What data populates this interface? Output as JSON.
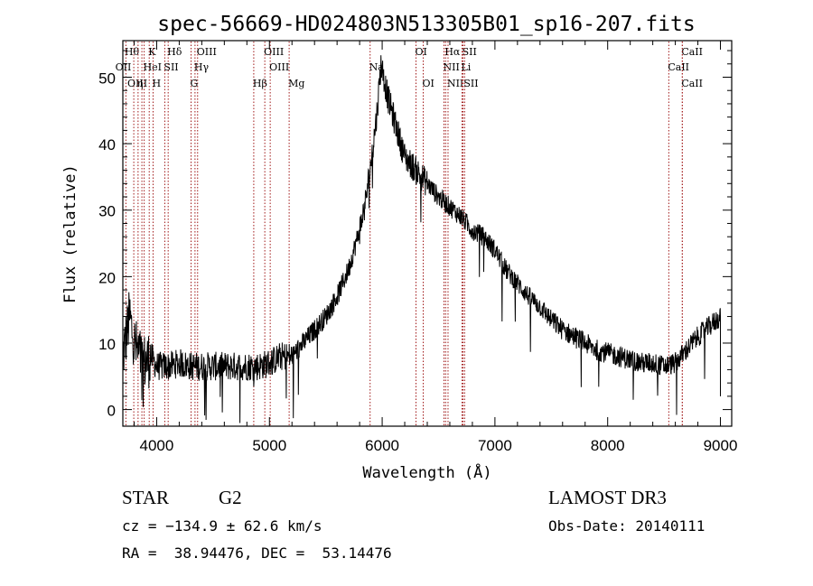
{
  "header": {
    "title": "spec-56669-HD024803N513305B01_sp16-207.fits"
  },
  "chart_data": {
    "type": "line",
    "title": "spec-56669-HD024803N513305B01_sp16-207.fits",
    "xlabel": "Wavelength (Å)",
    "ylabel": "Flux (relative)",
    "xlim": [
      3700,
      9100
    ],
    "ylim": [
      -2.5,
      55.5
    ],
    "xticks": [
      4000,
      5000,
      6000,
      7000,
      8000,
      9000
    ],
    "yticks": [
      0,
      10,
      20,
      30,
      40,
      50
    ],
    "grid": false,
    "series": [
      {
        "x": [
          3700,
          3760,
          3800,
          3850,
          3900,
          3950,
          4000,
          4100,
          4200,
          4300,
          4400,
          4500,
          4600,
          4700,
          4800,
          4900,
          5000,
          5100,
          5200,
          5300,
          5400,
          5500,
          5600,
          5700,
          5800,
          5850,
          5900,
          5950,
          5990,
          6050,
          6100,
          6150,
          6200,
          6300,
          6400,
          6500,
          6600,
          6700,
          6800,
          6900,
          7000,
          7100,
          7200,
          7300,
          7400,
          7500,
          7600,
          7700,
          7800,
          7900,
          8000,
          8100,
          8200,
          8300,
          8400,
          8500,
          8600,
          8700,
          8800,
          8900,
          9000,
          9010
        ],
        "y": [
          8,
          14,
          10,
          8,
          7,
          8,
          6.5,
          6.5,
          7,
          6.5,
          6.5,
          6.5,
          6.5,
          6.5,
          6.5,
          6.5,
          7,
          8,
          8,
          10,
          12,
          14,
          17,
          21,
          27,
          31,
          37,
          44,
          52,
          47,
          44,
          41,
          38,
          36,
          34,
          32,
          30.5,
          29,
          27,
          26,
          24,
          21,
          19,
          17,
          15.5,
          13.5,
          12,
          11,
          10,
          9,
          8.5,
          8,
          7.5,
          7,
          7,
          6.5,
          7,
          9,
          11,
          12.5,
          14,
          2
        ]
      }
    ],
    "line_markers": [
      {
        "label": "Hθ",
        "x": 3797,
        "row": 1,
        "align": "right"
      },
      {
        "label": "OII",
        "x": 3727,
        "row": 2,
        "align": "right"
      },
      {
        "label": "OIII",
        "x": 3869,
        "row": 3,
        "align": "right"
      },
      {
        "label": "K",
        "x": 3934,
        "row": 1
      },
      {
        "label": "HeI",
        "x": 3889,
        "row": 2
      },
      {
        "label": "η",
        "x": 3835,
        "row": 3
      },
      {
        "label": "H",
        "x": 3968,
        "row": 3
      },
      {
        "label": "Hδ",
        "x": 4102,
        "row": 1
      },
      {
        "label": "SII",
        "x": 4072,
        "row": 2
      },
      {
        "label": "OIII",
        "x": 4363,
        "row": 1
      },
      {
        "label": "Hγ",
        "x": 4340,
        "row": 2
      },
      {
        "label": "G",
        "x": 4305,
        "row": 3
      },
      {
        "label": "Hβ",
        "x": 4861,
        "row": 3
      },
      {
        "label": "OIII",
        "x": 4959,
        "row": 1
      },
      {
        "label": "OIII",
        "x": 5007,
        "row": 2
      },
      {
        "label": "Mg",
        "x": 5175,
        "row": 3
      },
      {
        "label": "Na",
        "x": 5893,
        "row": 2
      },
      {
        "label": "OI",
        "x": 6300,
        "row": 1
      },
      {
        "label": "OI",
        "x": 6364,
        "row": 3
      },
      {
        "label": "Hα",
        "x": 6563,
        "row": 1
      },
      {
        "label": "NII",
        "x": 6548,
        "row": 2
      },
      {
        "label": "NII",
        "x": 6584,
        "row": 3
      },
      {
        "label": "SII",
        "x": 6717,
        "row": 1
      },
      {
        "label": "Li",
        "x": 6708,
        "row": 2
      },
      {
        "label": "SII",
        "x": 6731,
        "row": 3
      },
      {
        "label": "CaII",
        "x": 8662,
        "row": 1
      },
      {
        "label": "CaII",
        "x": 8542,
        "row": 2
      },
      {
        "label": "CaII",
        "x": 8662,
        "row": 3
      }
    ]
  },
  "info": {
    "object_type": "STAR",
    "subclass": "G2",
    "survey": "LAMOST DR3",
    "velocity": "cz = −134.9 ± 62.6 km/s",
    "obs_date": "Obs-Date: 20140111",
    "coordinates": "RA =  38.94476, DEC =  53.14476"
  },
  "colors": {
    "axis": "#000000",
    "spectrum": "#000000",
    "marker_line": "#a01818"
  }
}
